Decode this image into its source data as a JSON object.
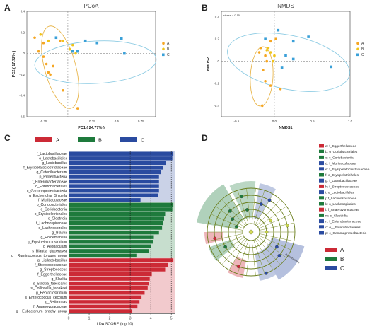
{
  "panel_labels": [
    "A",
    "B",
    "C",
    "D"
  ],
  "chart_data": [
    {
      "type": "scatter",
      "title": "PCoA",
      "xlabel": "PC1 ( 24.77% )",
      "ylabel": "PC2 ( 17.72% )",
      "xlim": [
        -0.42,
        0.9
      ],
      "ylim": [
        -0.6,
        0.4
      ],
      "xticks": [
        "-0.25",
        "0.25",
        "0.5",
        "0.75"
      ],
      "yticks": [
        "0.4",
        "0.2",
        "0",
        "-0.2",
        "-0.4",
        "-0.6"
      ],
      "legend_position": "right",
      "series": [
        {
          "name": "A",
          "color": "#f5a623",
          "points": [
            [
              -0.34,
              0.15
            ],
            [
              -0.3,
              0.02
            ],
            [
              -0.25,
              -0.03
            ],
            [
              -0.22,
              -0.1
            ],
            [
              -0.2,
              -0.18
            ],
            [
              -0.18,
              -0.2
            ],
            [
              -0.15,
              -0.12
            ],
            [
              -0.25,
              0.1
            ],
            [
              -0.05,
              -0.35
            ],
            [
              0.1,
              -0.52
            ],
            [
              -0.08,
              0.12
            ]
          ]
        },
        {
          "name": "B",
          "color": "#f0c419",
          "points": [
            [
              -0.28,
              0.18
            ],
            [
              -0.2,
              0.12
            ],
            [
              0.05,
              0.08
            ],
            [
              -0.05,
              0.12
            ],
            [
              0.02,
              0.04
            ],
            [
              0.08,
              0.0
            ]
          ]
        },
        {
          "name": "C",
          "color": "#3aa0d8",
          "points": [
            [
              -0.12,
              0.15
            ],
            [
              0.18,
              0.12
            ],
            [
              0.3,
              0.1
            ],
            [
              0.55,
              0.14
            ],
            [
              0.58,
              0.0
            ],
            [
              0.05,
              0.02
            ],
            [
              0.1,
              0.02
            ]
          ]
        }
      ]
    },
    {
      "type": "scatter",
      "title": "NMDS",
      "xlabel": "NMDS1",
      "ylabel": "NMDS2",
      "stress": "stress = 0.15",
      "xlim": [
        -0.7,
        1.0
      ],
      "ylim": [
        -0.5,
        0.45
      ],
      "xticks": [
        "-0.5",
        "0.0",
        "0.5",
        "1.0"
      ],
      "yticks": [
        "0.4",
        "0.2",
        "0",
        "-0.2",
        "-0.4"
      ],
      "legend_position": "right",
      "series": [
        {
          "name": "A",
          "color": "#f5a623",
          "points": [
            [
              -0.18,
              0.12
            ],
            [
              -0.12,
              0.05
            ],
            [
              -0.1,
              0.0
            ],
            [
              -0.15,
              -0.08
            ],
            [
              -0.12,
              -0.18
            ],
            [
              -0.05,
              -0.22
            ],
            [
              0.08,
              -0.25
            ],
            [
              -0.05,
              0.18
            ],
            [
              0.02,
              0.2
            ],
            [
              -0.2,
              0.08
            ],
            [
              -0.16,
              -0.4
            ]
          ]
        },
        {
          "name": "B",
          "color": "#f0c419",
          "points": [
            [
              -0.1,
              0.1
            ],
            [
              -0.05,
              0.08
            ],
            [
              0.0,
              0.05
            ],
            [
              -0.08,
              0.12
            ],
            [
              -0.02,
              0.0
            ]
          ]
        },
        {
          "name": "C",
          "color": "#3aa0d8",
          "points": [
            [
              -0.12,
              0.2
            ],
            [
              0.05,
              0.28
            ],
            [
              0.25,
              0.18
            ],
            [
              0.45,
              0.22
            ],
            [
              0.15,
              0.05
            ],
            [
              0.25,
              0.02
            ],
            [
              0.1,
              -0.06
            ],
            [
              0.75,
              -0.05
            ]
          ]
        }
      ]
    },
    {
      "type": "bar",
      "orientation": "horizontal",
      "xlabel": "LDA SCORE (log 10)",
      "xlim": [
        0,
        5.2
      ],
      "xticks": [
        "0",
        "1",
        "2",
        "3",
        "4",
        "5"
      ],
      "legend_position": "top",
      "series": [
        {
          "name": "C",
          "color": "#2a4ba0",
          "categories": [
            "f_Lactobacillaceae",
            "o_Lactobacillales",
            "g_Lactobacillus",
            "f_Erysipelatoclostridiaceae",
            "g_Catenibacterium",
            "p_Proteobacteria",
            "f_Enterobacteriaceae",
            "o_Enterobacterales",
            "c_Gammaproteobacteria",
            "g_Escherichia_Shigella",
            "f_Muribaculaceae"
          ],
          "values": [
            5.1,
            5.05,
            4.75,
            4.6,
            4.5,
            4.4,
            4.4,
            4.4,
            4.4,
            4.35,
            3.5
          ]
        },
        {
          "name": "B",
          "color": "#1e7a3c",
          "categories": [
            "o_Coriobacteriales",
            "c_Coriobacteriia",
            "o_Erysipelotrichales",
            "c_Clostridia",
            "f_Lachnospiraceae",
            "o_Lachnospirales",
            "g_Blautia",
            "g_Holdemanella",
            "g_Erysipelatoclostridium",
            "g_Allobaculum",
            "s_Blautia_glucerasea",
            "g__Ruminococcus_torques_group"
          ],
          "values": [
            5.1,
            5.05,
            4.7,
            4.65,
            4.6,
            4.55,
            4.4,
            4.15,
            4.1,
            4.0,
            3.9,
            3.3
          ]
        },
        {
          "name": "A",
          "color": "#cc2a36",
          "categories": [
            "g_Ligilactobacillus",
            "f_Streptococcaceae",
            "g_Streptococcus",
            "f_Eggerthellaceae",
            "g_Slackia",
            "s_Slackia_faecicanis",
            "s_Collinsella_tanakaei",
            "g_Peptoclostridium",
            "s_Enterococcus_cecorum",
            "g_Sellimonas",
            "f_Anaerovoracaceae",
            "g__Eubacterium_brachy_group"
          ],
          "values": [
            5.1,
            4.85,
            4.7,
            4.05,
            3.95,
            3.9,
            3.85,
            3.7,
            3.55,
            3.45,
            3.35,
            3.1
          ]
        }
      ]
    },
    {
      "type": "cladogram",
      "legend_position": "right",
      "group_legend": [
        {
          "name": "A",
          "color": "#cc2a36"
        },
        {
          "name": "B",
          "color": "#1e7a3c"
        },
        {
          "name": "C",
          "color": "#2a4ba0"
        }
      ],
      "taxa": [
        {
          "key": "a",
          "name": "f_Eggerthellaceae",
          "color": "#cc2a36"
        },
        {
          "key": "b",
          "name": "o_Coriobacteriales",
          "color": "#1e7a3c"
        },
        {
          "key": "c",
          "name": "c_Coriobacteriia",
          "color": "#1e7a3c"
        },
        {
          "key": "d",
          "name": "f_Muribaculaceae",
          "color": "#2a4ba0"
        },
        {
          "key": "e",
          "name": "f_Erysipelatoclostridiaceae",
          "color": "#2a4ba0"
        },
        {
          "key": "f",
          "name": "o_Erysipelotrichales",
          "color": "#1e7a3c"
        },
        {
          "key": "g",
          "name": "f_Lactobacillaceae",
          "color": "#2a4ba0"
        },
        {
          "key": "h",
          "name": "f_Streptococcaceae",
          "color": "#cc2a36"
        },
        {
          "key": "i",
          "name": "o_Lactobacillales",
          "color": "#2a4ba0"
        },
        {
          "key": "j",
          "name": "f_Lachnospiraceae",
          "color": "#1e7a3c"
        },
        {
          "key": "k",
          "name": "o_Lachnospirales",
          "color": "#1e7a3c"
        },
        {
          "key": "l",
          "name": "f_Anaerovoracaceae",
          "color": "#cc2a36"
        },
        {
          "key": "m",
          "name": "c_Clostridia",
          "color": "#1e7a3c"
        },
        {
          "key": "n",
          "name": "f_Enterobacteriaceae",
          "color": "#2a4ba0"
        },
        {
          "key": "o",
          "name": "o__Enterobacterales",
          "color": "#2a4ba0"
        },
        {
          "key": "p",
          "name": "c_Gammaproteobacteria",
          "color": "#2a4ba0"
        }
      ],
      "phylum_label": "Proteobacteria"
    }
  ]
}
